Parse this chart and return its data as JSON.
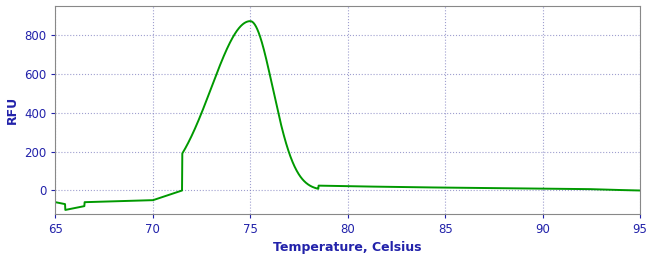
{
  "xlabel": "Temperature, Celsius",
  "ylabel": "RFU",
  "line_color": "#009900",
  "background_color": "#ffffff",
  "grid_color": "#7777bb",
  "xlim": [
    65,
    95
  ],
  "ylim": [
    -120,
    950
  ],
  "xticks": [
    65,
    70,
    75,
    80,
    85,
    90,
    95
  ],
  "yticks": [
    0,
    200,
    400,
    600,
    800
  ],
  "peak_temp": 75.0,
  "peak_rfu": 870,
  "line_width": 1.4,
  "label_color": "#2222aa",
  "tick_color": "#2222aa",
  "spine_color": "#888888"
}
